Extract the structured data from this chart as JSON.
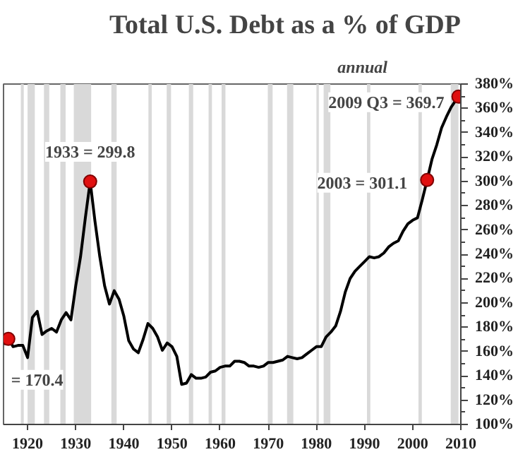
{
  "chart_data": {
    "type": "line",
    "title": "Total U.S. Debt as a % of GDP",
    "subtitle": "annual",
    "xlim": [
      1915,
      2010
    ],
    "xticks": [
      1920,
      1930,
      1940,
      1950,
      1960,
      1970,
      1980,
      1990,
      2000,
      2010
    ],
    "ylim": [
      100,
      380
    ],
    "yticks": [
      {
        "value": 100,
        "label": "100%"
      },
      {
        "value": 120,
        "label": "120%"
      },
      {
        "value": 140,
        "label": "140%"
      },
      {
        "value": 160,
        "label": "160%"
      },
      {
        "value": 180,
        "label": "180%"
      },
      {
        "value": 200,
        "label": "200%"
      },
      {
        "value": 220,
        "label": "220%"
      },
      {
        "value": 240,
        "label": "240%"
      },
      {
        "value": 260,
        "label": "260%"
      },
      {
        "value": 280,
        "label": "280%"
      },
      {
        "value": 300,
        "label": "300%"
      },
      {
        "value": 320,
        "label": "320%"
      },
      {
        "value": 340,
        "label": "340%"
      },
      {
        "value": 360,
        "label": "360%"
      },
      {
        "value": 380,
        "label": "380%"
      }
    ],
    "grid": false,
    "line_style": "solid",
    "series": [
      {
        "color": "#000000",
        "x": [
          1915,
          1916,
          1917,
          1918,
          1919,
          1920,
          1921,
          1922,
          1923,
          1924,
          1925,
          1926,
          1927,
          1928,
          1929,
          1930,
          1931,
          1932,
          1933,
          1934,
          1935,
          1936,
          1937,
          1938,
          1939,
          1940,
          1941,
          1942,
          1943,
          1944,
          1945,
          1946,
          1947,
          1948,
          1949,
          1950,
          1951,
          1952,
          1953,
          1954,
          1955,
          1956,
          1957,
          1958,
          1959,
          1960,
          1961,
          1962,
          1963,
          1964,
          1965,
          1966,
          1967,
          1968,
          1969,
          1970,
          1971,
          1972,
          1973,
          1974,
          1975,
          1976,
          1977,
          1978,
          1979,
          1980,
          1981,
          1982,
          1983,
          1984,
          1985,
          1986,
          1987,
          1988,
          1989,
          1990,
          1991,
          1992,
          1993,
          1994,
          1995,
          1996,
          1997,
          1998,
          1999,
          2000,
          2001,
          2002,
          2003,
          2004,
          2005,
          2006,
          2007,
          2008,
          2009.5
        ],
        "values": [
          166,
          170.4,
          164,
          165,
          165,
          155,
          188,
          193,
          174,
          177,
          179,
          176,
          186,
          192,
          186,
          214,
          238,
          270,
          299.8,
          267,
          238,
          214,
          199,
          210,
          203,
          189,
          169,
          162,
          159,
          170,
          183,
          179,
          172,
          161,
          167,
          164,
          156,
          133,
          134,
          141,
          138,
          138,
          139,
          143,
          144,
          147,
          148,
          148,
          152,
          152,
          151,
          148,
          148,
          147,
          148,
          151,
          151,
          152,
          153,
          156,
          155,
          154,
          155,
          158,
          161,
          164,
          164,
          172,
          176,
          181,
          193,
          209,
          220,
          226,
          230,
          234,
          238,
          237,
          238,
          241,
          246,
          249,
          251,
          259,
          265,
          268,
          270,
          285,
          301.1,
          318,
          330,
          344,
          353,
          361,
          369.7
        ]
      },
      {
        "type": "scatter",
        "marker": "circle",
        "color": "#e01010",
        "x": [
          1916,
          1933,
          2003,
          2009.5
        ],
        "values": [
          170.4,
          299.8,
          301.1,
          369.7
        ]
      }
    ],
    "annotations": [
      {
        "text": "2009 Q3 = 369.7",
        "x": 2009.5,
        "y": 369.7
      },
      {
        "text": "1933 = 299.8",
        "x": 1933,
        "y": 299.8
      },
      {
        "text": "2003 = 301.1",
        "x": 2003,
        "y": 301.1
      },
      {
        "text": "= 170.4",
        "x": 1916,
        "y": 170.4
      }
    ],
    "bands": [
      {
        "axis": "x",
        "from": 1918.6,
        "to": 1919.2,
        "color": "#d9d9d9"
      },
      {
        "axis": "x",
        "from": 1920.0,
        "to": 1921.5,
        "color": "#d9d9d9"
      },
      {
        "axis": "x",
        "from": 1923.4,
        "to": 1924.5,
        "color": "#d9d9d9"
      },
      {
        "axis": "x",
        "from": 1926.8,
        "to": 1927.9,
        "color": "#d9d9d9"
      },
      {
        "axis": "x",
        "from": 1929.6,
        "to": 1933.2,
        "color": "#d9d9d9"
      },
      {
        "axis": "x",
        "from": 1937.4,
        "to": 1938.5,
        "color": "#d9d9d9"
      },
      {
        "axis": "x",
        "from": 1945.1,
        "to": 1945.8,
        "color": "#d9d9d9"
      },
      {
        "axis": "x",
        "from": 1948.9,
        "to": 1949.8,
        "color": "#d9d9d9"
      },
      {
        "axis": "x",
        "from": 1953.5,
        "to": 1954.4,
        "color": "#d9d9d9"
      },
      {
        "axis": "x",
        "from": 1957.6,
        "to": 1958.3,
        "color": "#d9d9d9"
      },
      {
        "axis": "x",
        "from": 1960.3,
        "to": 1961.1,
        "color": "#d9d9d9"
      },
      {
        "axis": "x",
        "from": 1969.9,
        "to": 1970.9,
        "color": "#d9d9d9"
      },
      {
        "axis": "x",
        "from": 1973.9,
        "to": 1975.2,
        "color": "#d9d9d9"
      },
      {
        "axis": "x",
        "from": 1980.0,
        "to": 1980.5,
        "color": "#d9d9d9"
      },
      {
        "axis": "x",
        "from": 1981.5,
        "to": 1982.9,
        "color": "#d9d9d9"
      },
      {
        "axis": "x",
        "from": 1990.5,
        "to": 1991.2,
        "color": "#d9d9d9"
      },
      {
        "axis": "x",
        "from": 2001.2,
        "to": 2001.9,
        "color": "#d9d9d9"
      },
      {
        "axis": "x",
        "from": 2007.9,
        "to": 2009.5,
        "color": "#d9d9d9"
      }
    ]
  }
}
